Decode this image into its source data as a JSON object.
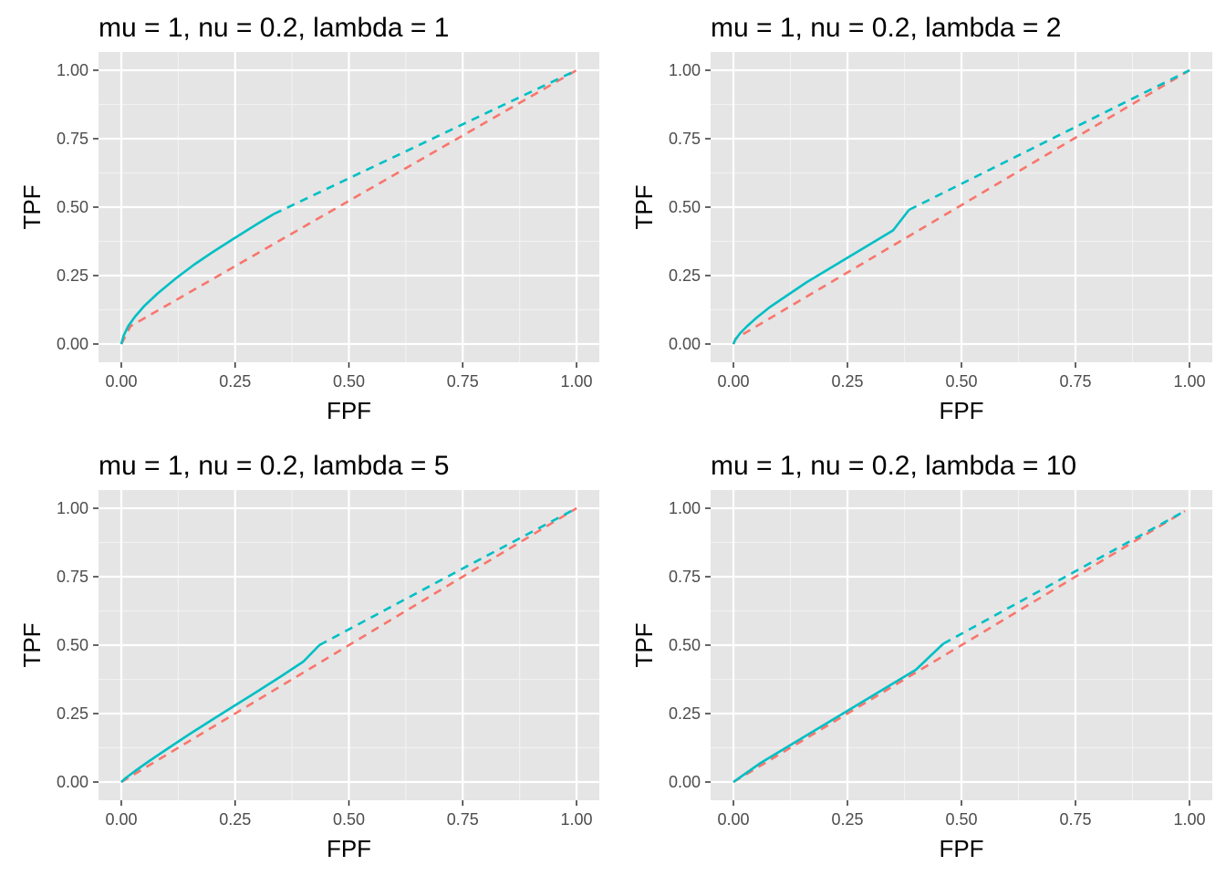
{
  "chart_data": [
    {
      "type": "line",
      "title": "mu = 1, nu = 0.2, lambda = 1",
      "xlabel": "FPF",
      "ylabel": "TPF",
      "xlim": [
        0,
        1
      ],
      "ylim": [
        0,
        1
      ],
      "xticks": [
        "0.00",
        "0.25",
        "0.50",
        "0.75",
        "1.00"
      ],
      "yticks": [
        "0.00",
        "0.25",
        "0.50",
        "0.75",
        "1.00"
      ],
      "grid": true,
      "series": [
        {
          "color": "#F8766D",
          "style": "dashed",
          "x": [
            0.0,
            0.02,
            1.0
          ],
          "y": [
            0.0,
            0.065,
            1.0
          ]
        },
        {
          "color": "#00BFC4",
          "style": "solid",
          "x": [
            0.0,
            0.005,
            0.015,
            0.03,
            0.05,
            0.08,
            0.12,
            0.16,
            0.2,
            0.25,
            0.3,
            0.335
          ],
          "y": [
            0.0,
            0.03,
            0.065,
            0.1,
            0.138,
            0.185,
            0.24,
            0.29,
            0.335,
            0.388,
            0.44,
            0.475
          ]
        },
        {
          "color": "#00BFC4",
          "style": "dashed",
          "x": [
            0.335,
            1.0
          ],
          "y": [
            0.475,
            1.0
          ]
        }
      ]
    },
    {
      "type": "line",
      "title": "mu = 1, nu = 0.2, lambda = 2",
      "xlabel": "FPF",
      "ylabel": "TPF",
      "xlim": [
        0,
        1
      ],
      "ylim": [
        0,
        1
      ],
      "xticks": [
        "0.00",
        "0.25",
        "0.50",
        "0.75",
        "1.00"
      ],
      "yticks": [
        "0.00",
        "0.25",
        "0.50",
        "0.75",
        "1.00"
      ],
      "grid": true,
      "series": [
        {
          "color": "#F8766D",
          "style": "dashed",
          "x": [
            0.0,
            0.005,
            1.0
          ],
          "y": [
            0.0,
            0.02,
            1.0
          ]
        },
        {
          "color": "#00BFC4",
          "style": "solid",
          "x": [
            0.0,
            0.005,
            0.015,
            0.03,
            0.05,
            0.08,
            0.12,
            0.16,
            0.2,
            0.25,
            0.3,
            0.35,
            0.385
          ],
          "y": [
            0.0,
            0.018,
            0.04,
            0.065,
            0.095,
            0.135,
            0.18,
            0.225,
            0.265,
            0.315,
            0.365,
            0.415,
            0.49
          ]
        },
        {
          "color": "#00BFC4",
          "style": "dashed",
          "x": [
            0.385,
            1.0
          ],
          "y": [
            0.49,
            1.0
          ]
        }
      ]
    },
    {
      "type": "line",
      "title": "mu = 1, nu = 0.2, lambda = 5",
      "xlabel": "FPF",
      "ylabel": "TPF",
      "xlim": [
        0,
        1
      ],
      "ylim": [
        0,
        1
      ],
      "xticks": [
        "0.00",
        "0.25",
        "0.50",
        "0.75",
        "1.00"
      ],
      "yticks": [
        "0.00",
        "0.25",
        "0.50",
        "0.75",
        "1.00"
      ],
      "grid": true,
      "series": [
        {
          "color": "#F8766D",
          "style": "dashed",
          "x": [
            0.0,
            1.0
          ],
          "y": [
            0.0,
            1.0
          ]
        },
        {
          "color": "#00BFC4",
          "style": "solid",
          "x": [
            0.0,
            0.01,
            0.03,
            0.06,
            0.1,
            0.15,
            0.2,
            0.25,
            0.3,
            0.35,
            0.4,
            0.435
          ],
          "y": [
            0.0,
            0.015,
            0.04,
            0.075,
            0.12,
            0.175,
            0.228,
            0.28,
            0.332,
            0.385,
            0.44,
            0.5
          ]
        },
        {
          "color": "#00BFC4",
          "style": "dashed",
          "x": [
            0.435,
            0.75,
            1.0
          ],
          "y": [
            0.5,
            0.78,
            1.0
          ]
        }
      ]
    },
    {
      "type": "line",
      "title": "mu = 1, nu = 0.2, lambda = 10",
      "xlabel": "FPF",
      "ylabel": "TPF",
      "xlim": [
        0,
        1
      ],
      "ylim": [
        0,
        1
      ],
      "xticks": [
        "0.00",
        "0.25",
        "0.50",
        "0.75",
        "1.00"
      ],
      "yticks": [
        "0.00",
        "0.25",
        "0.50",
        "0.75",
        "1.00"
      ],
      "grid": true,
      "series": [
        {
          "color": "#F8766D",
          "style": "dashed",
          "x": [
            0.0,
            0.99
          ],
          "y": [
            0.0,
            0.99
          ]
        },
        {
          "color": "#00BFC4",
          "style": "solid",
          "x": [
            0.0,
            0.01,
            0.03,
            0.06,
            0.1,
            0.15,
            0.2,
            0.25,
            0.3,
            0.35,
            0.4,
            0.46
          ],
          "y": [
            0.0,
            0.012,
            0.035,
            0.07,
            0.11,
            0.16,
            0.21,
            0.26,
            0.31,
            0.36,
            0.41,
            0.505
          ]
        },
        {
          "color": "#00BFC4",
          "style": "dashed",
          "x": [
            0.46,
            0.75,
            0.99
          ],
          "y": [
            0.505,
            0.77,
            0.99
          ]
        }
      ]
    }
  ],
  "colors": {
    "panel_background": "#E5E5E5",
    "grid_major": "#FFFFFF",
    "grid_minor": "#F2F2F2",
    "series_red": "#F8766D",
    "series_teal": "#00BFC4"
  }
}
